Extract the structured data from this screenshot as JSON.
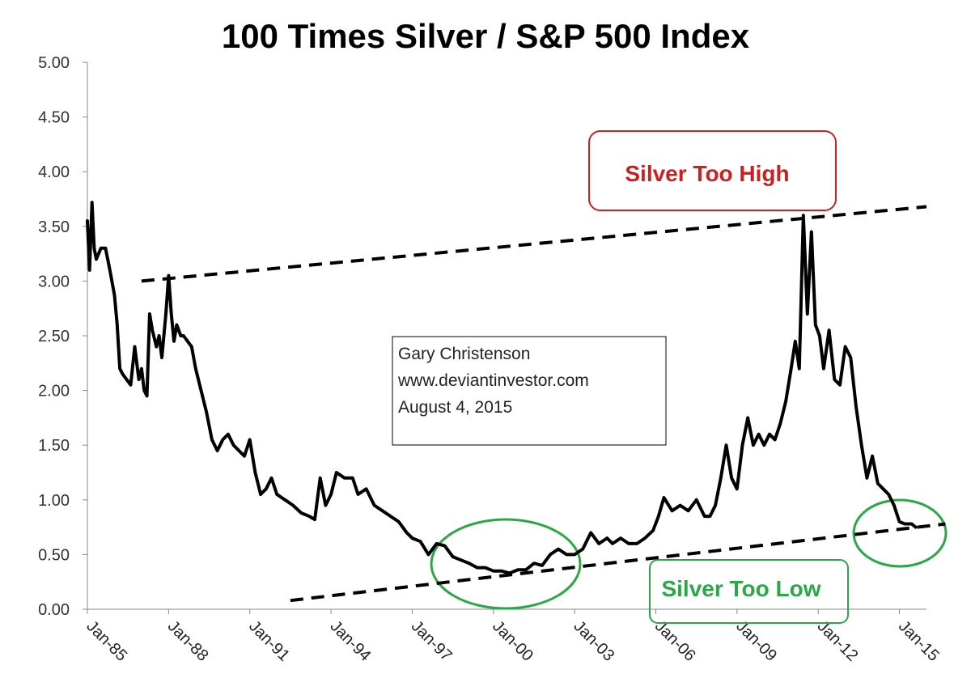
{
  "chart_data": {
    "type": "line",
    "title": "100 Times Silver / S&P 500 Index",
    "xlabel": "",
    "ylabel": "",
    "ylim": [
      0,
      5
    ],
    "yticks": [
      "0.00",
      "0.50",
      "1.00",
      "1.50",
      "2.00",
      "2.50",
      "3.00",
      "3.50",
      "4.00",
      "4.50",
      "5.00"
    ],
    "xlim": [
      1985.0,
      2016.0
    ],
    "xticks": [
      {
        "year": 1985,
        "label": "Jan-85"
      },
      {
        "year": 1988,
        "label": "Jan-88"
      },
      {
        "year": 1991,
        "label": "Jan-91"
      },
      {
        "year": 1994,
        "label": "Jan-94"
      },
      {
        "year": 1997,
        "label": "Jan-97"
      },
      {
        "year": 2000,
        "label": "Jan-00"
      },
      {
        "year": 2003,
        "label": "Jan-03"
      },
      {
        "year": 2006,
        "label": "Jan-06"
      },
      {
        "year": 2009,
        "label": "Jan-09"
      },
      {
        "year": 2012,
        "label": "Jan-12"
      },
      {
        "year": 2015,
        "label": "Jan-15"
      }
    ],
    "series": [
      {
        "name": "100 Times Silver / S&P 500",
        "x": [
          1985.0,
          1985.08,
          1985.17,
          1985.25,
          1985.33,
          1985.5,
          1985.67,
          1985.83,
          1986.0,
          1986.1,
          1986.2,
          1986.3,
          1986.45,
          1986.6,
          1986.75,
          1986.9,
          1987.0,
          1987.1,
          1987.2,
          1987.3,
          1987.4,
          1987.55,
          1987.65,
          1987.75,
          1987.9,
          1988.0,
          1988.1,
          1988.2,
          1988.3,
          1988.45,
          1988.55,
          1988.7,
          1988.85,
          1989.0,
          1989.2,
          1989.4,
          1989.6,
          1989.8,
          1990.0,
          1990.2,
          1990.4,
          1990.6,
          1990.8,
          1991.0,
          1991.2,
          1991.4,
          1991.6,
          1991.8,
          1992.0,
          1992.3,
          1992.6,
          1992.9,
          1993.2,
          1993.4,
          1993.6,
          1993.8,
          1994.0,
          1994.2,
          1994.5,
          1994.8,
          1995.0,
          1995.3,
          1995.6,
          1995.9,
          1996.2,
          1996.5,
          1996.8,
          1997.0,
          1997.3,
          1997.6,
          1997.9,
          1998.2,
          1998.5,
          1998.8,
          1999.1,
          1999.4,
          1999.7,
          2000.0,
          2000.3,
          2000.6,
          2000.9,
          2001.2,
          2001.5,
          2001.8,
          2002.1,
          2002.4,
          2002.7,
          2003.0,
          2003.3,
          2003.6,
          2003.9,
          2004.2,
          2004.4,
          2004.7,
          2005.0,
          2005.3,
          2005.6,
          2005.9,
          2006.1,
          2006.3,
          2006.6,
          2006.9,
          2007.2,
          2007.5,
          2007.8,
          2008.0,
          2008.2,
          2008.4,
          2008.6,
          2008.8,
          2009.0,
          2009.2,
          2009.4,
          2009.6,
          2009.8,
          2010.0,
          2010.2,
          2010.4,
          2010.6,
          2010.8,
          2011.0,
          2011.15,
          2011.3,
          2011.45,
          2011.6,
          2011.75,
          2011.9,
          2012.05,
          2012.2,
          2012.4,
          2012.6,
          2012.8,
          2013.0,
          2013.2,
          2013.4,
          2013.6,
          2013.8,
          2014.0,
          2014.2,
          2014.4,
          2014.6,
          2014.8,
          2015.0,
          2015.2,
          2015.45,
          2015.6
        ],
        "y": [
          3.55,
          3.1,
          3.72,
          3.3,
          3.2,
          3.3,
          3.3,
          3.1,
          2.87,
          2.6,
          2.2,
          2.15,
          2.1,
          2.05,
          2.4,
          2.1,
          2.2,
          2.0,
          1.95,
          2.7,
          2.55,
          2.4,
          2.5,
          2.3,
          2.7,
          3.05,
          2.7,
          2.45,
          2.6,
          2.5,
          2.5,
          2.45,
          2.4,
          2.2,
          2.0,
          1.8,
          1.55,
          1.45,
          1.55,
          1.6,
          1.5,
          1.45,
          1.4,
          1.55,
          1.25,
          1.05,
          1.1,
          1.2,
          1.05,
          1.0,
          0.95,
          0.88,
          0.85,
          0.82,
          1.2,
          0.95,
          1.05,
          1.25,
          1.2,
          1.2,
          1.05,
          1.1,
          0.95,
          0.9,
          0.85,
          0.8,
          0.7,
          0.65,
          0.62,
          0.5,
          0.6,
          0.58,
          0.48,
          0.45,
          0.42,
          0.38,
          0.38,
          0.35,
          0.35,
          0.33,
          0.36,
          0.36,
          0.42,
          0.4,
          0.5,
          0.55,
          0.5,
          0.5,
          0.55,
          0.7,
          0.6,
          0.65,
          0.6,
          0.65,
          0.6,
          0.6,
          0.65,
          0.72,
          0.85,
          1.02,
          0.9,
          0.95,
          0.9,
          1.0,
          0.85,
          0.85,
          0.95,
          1.2,
          1.5,
          1.2,
          1.1,
          1.5,
          1.75,
          1.5,
          1.6,
          1.5,
          1.6,
          1.55,
          1.7,
          1.9,
          2.2,
          2.45,
          2.2,
          3.6,
          2.7,
          3.45,
          2.6,
          2.5,
          2.2,
          2.55,
          2.1,
          2.05,
          2.4,
          2.3,
          1.85,
          1.5,
          1.2,
          1.4,
          1.15,
          1.1,
          1.05,
          0.95,
          0.8,
          0.78,
          0.78,
          0.75
        ]
      }
    ],
    "trendlines": [
      {
        "name": "upper",
        "from": [
          1987.0,
          3.0
        ],
        "to": [
          2016.0,
          3.68
        ]
      },
      {
        "name": "lower",
        "from": [
          1992.5,
          0.08
        ],
        "to": [
          2016.7,
          0.78
        ]
      }
    ],
    "annotations": {
      "high": "Silver Too High",
      "low": "Silver Too Low",
      "credit_line1": "Gary Christenson",
      "credit_line2": "www.deviantinvestor.com",
      "credit_line3": "August 4, 2015"
    },
    "grid": false,
    "legend": "none",
    "colors": {
      "line": "#000000",
      "high": "#cc1f1f",
      "low": "#2aa846",
      "axis": "#888888"
    }
  }
}
